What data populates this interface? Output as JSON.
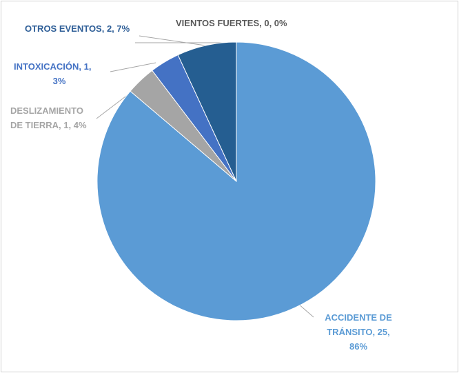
{
  "chart_data": {
    "type": "pie",
    "values": [
      25,
      1,
      1,
      2,
      0
    ],
    "colors": [
      "#5b9bd5",
      "#a5a5a5",
      "#4472c4",
      "#255e91",
      "#264478"
    ],
    "value_labels": [
      [
        "ACCIDENTE DE",
        "TRÁNSITO, 25,",
        "86%"
      ],
      [
        "DESLIZAMIENTO",
        "DE TIERRA, 1, 4%"
      ],
      [
        "INTOXICACIÓN, 1,",
        "3%"
      ],
      [
        "OTROS EVENTOS, 2, 7%"
      ],
      [
        "VIENTOS FUERTES, 0, 0%"
      ]
    ]
  }
}
